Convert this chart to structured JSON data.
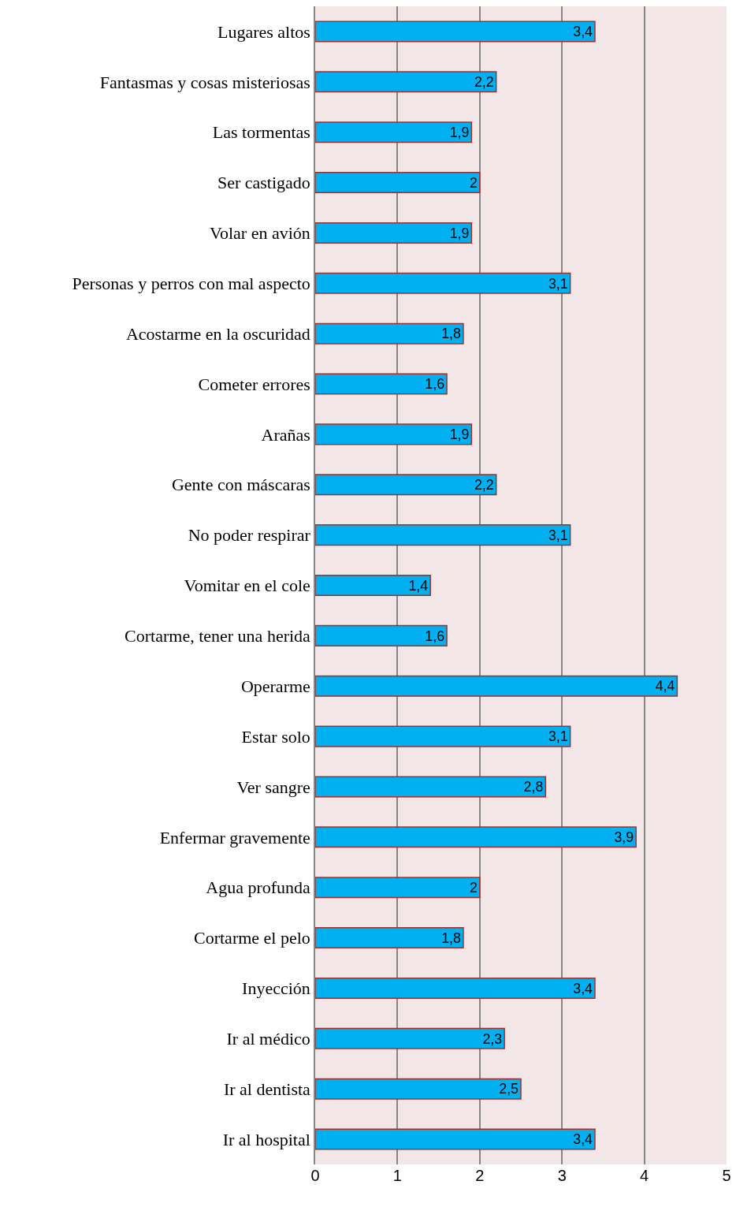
{
  "chart_data": {
    "type": "bar",
    "orientation": "horizontal",
    "categories": [
      "Lugares altos",
      "Fantasmas y cosas misteriosas",
      "Las tormentas",
      "Ser castigado",
      "Volar en avión",
      "Personas y perros con mal aspecto",
      "Acostarme en la oscuridad",
      "Cometer errores",
      "Arañas",
      "Gente con máscaras",
      "No poder respirar",
      "Vomitar en el cole",
      "Cortarme, tener una herida",
      "Operarme",
      "Estar solo",
      "Ver sangre",
      "Enfermar gravemente",
      "Agua profunda",
      "Cortarme el pelo",
      "Inyección",
      "Ir al médico",
      "Ir al dentista",
      "Ir al hospital"
    ],
    "values": [
      3.4,
      2.2,
      1.9,
      2,
      1.9,
      3.1,
      1.8,
      1.6,
      1.9,
      2.2,
      3.1,
      1.4,
      1.6,
      4.4,
      3.1,
      2.8,
      3.9,
      2,
      1.8,
      3.4,
      2.3,
      2.5,
      3.4
    ],
    "value_labels": [
      "3,4",
      "2,2",
      "1,9",
      "2",
      "1,9",
      "3,1",
      "1,8",
      "1,6",
      "1,9",
      "2,2",
      "3,1",
      "1,4",
      "1,6",
      "4,4",
      "3,1",
      "2,8",
      "3,9",
      "2",
      "1,8",
      "3,4",
      "2,3",
      "2,5",
      "3,4"
    ],
    "color": "#00b0f0",
    "xlim": [
      0,
      5
    ],
    "xticks": [
      0,
      1,
      2,
      3,
      4,
      5
    ],
    "grid": "x"
  }
}
